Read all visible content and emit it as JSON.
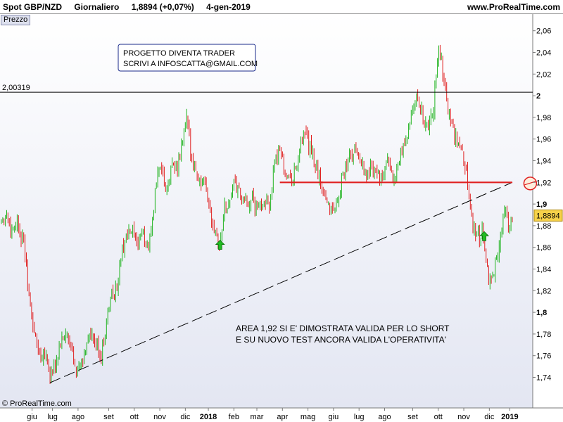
{
  "header": {
    "instrument": "Spot GBP/NZD",
    "timeframe": "Giornaliero",
    "quote": "1,8894 (+0,07%)",
    "date": "4-gen-2019",
    "site": "www.ProRealTime.com"
  },
  "panel_label": "Prezzo",
  "copyright": "© ProRealTime.com",
  "chart_data": {
    "type": "candlestick",
    "instrument": "GBP/NZD",
    "ylim": [
      1.715,
      2.065
    ],
    "y_ticks": [
      {
        "value": 1.74,
        "label": "1,74"
      },
      {
        "value": 1.76,
        "label": "1,76"
      },
      {
        "value": 1.78,
        "label": "1,78"
      },
      {
        "value": 1.8,
        "label": "1,8",
        "bold": true
      },
      {
        "value": 1.82,
        "label": "1,82"
      },
      {
        "value": 1.84,
        "label": "1,84"
      },
      {
        "value": 1.86,
        "label": "1,86"
      },
      {
        "value": 1.88,
        "label": "1,88"
      },
      {
        "value": 1.9,
        "label": "1,9",
        "bold": true
      },
      {
        "value": 1.92,
        "label": "1,92"
      },
      {
        "value": 1.94,
        "label": "1,94"
      },
      {
        "value": 1.96,
        "label": "1,96"
      },
      {
        "value": 1.98,
        "label": "1,98"
      },
      {
        "value": 2.0,
        "label": "2",
        "bold": true
      },
      {
        "value": 2.02,
        "label": "2,02"
      },
      {
        "value": 2.04,
        "label": "2,04"
      },
      {
        "value": 2.06,
        "label": "2,06"
      }
    ],
    "x_ticks": [
      {
        "t": 0.06,
        "label": "giu"
      },
      {
        "t": 0.1,
        "label": "lug"
      },
      {
        "t": 0.15,
        "label": "ago"
      },
      {
        "t": 0.21,
        "label": "set"
      },
      {
        "t": 0.26,
        "label": "ott"
      },
      {
        "t": 0.31,
        "label": "nov"
      },
      {
        "t": 0.36,
        "label": "dic"
      },
      {
        "t": 0.405,
        "label": "2018",
        "bold": true
      },
      {
        "t": 0.455,
        "label": "feb"
      },
      {
        "t": 0.5,
        "label": "mar"
      },
      {
        "t": 0.55,
        "label": "apr"
      },
      {
        "t": 0.6,
        "label": "mag"
      },
      {
        "t": 0.65,
        "label": "giu"
      },
      {
        "t": 0.7,
        "label": "lug"
      },
      {
        "t": 0.75,
        "label": "ago"
      },
      {
        "t": 0.805,
        "label": "set"
      },
      {
        "t": 0.855,
        "label": "ott"
      },
      {
        "t": 0.905,
        "label": "nov"
      },
      {
        "t": 0.955,
        "label": "dic"
      },
      {
        "t": 0.995,
        "label": "2019",
        "bold": true
      }
    ],
    "price_path": [
      [
        0.0,
        1.885
      ],
      [
        0.01,
        1.89
      ],
      [
        0.02,
        1.875
      ],
      [
        0.03,
        1.885
      ],
      [
        0.045,
        1.86
      ],
      [
        0.055,
        1.81
      ],
      [
        0.065,
        1.78
      ],
      [
        0.075,
        1.76
      ],
      [
        0.085,
        1.765
      ],
      [
        0.095,
        1.742
      ],
      [
        0.105,
        1.75
      ],
      [
        0.115,
        1.77
      ],
      [
        0.125,
        1.78
      ],
      [
        0.14,
        1.762
      ],
      [
        0.15,
        1.745
      ],
      [
        0.16,
        1.755
      ],
      [
        0.17,
        1.78
      ],
      [
        0.185,
        1.77
      ],
      [
        0.195,
        1.76
      ],
      [
        0.205,
        1.79
      ],
      [
        0.215,
        1.815
      ],
      [
        0.225,
        1.82
      ],
      [
        0.235,
        1.855
      ],
      [
        0.245,
        1.87
      ],
      [
        0.255,
        1.875
      ],
      [
        0.265,
        1.862
      ],
      [
        0.275,
        1.875
      ],
      [
        0.285,
        1.86
      ],
      [
        0.295,
        1.88
      ],
      [
        0.305,
        1.93
      ],
      [
        0.315,
        1.925
      ],
      [
        0.325,
        1.91
      ],
      [
        0.335,
        1.94
      ],
      [
        0.345,
        1.93
      ],
      [
        0.355,
        1.96
      ],
      [
        0.362,
        1.98
      ],
      [
        0.37,
        1.95
      ],
      [
        0.38,
        1.93
      ],
      [
        0.39,
        1.92
      ],
      [
        0.4,
        1.915
      ],
      [
        0.41,
        1.89
      ],
      [
        0.42,
        1.875
      ],
      [
        0.428,
        1.86
      ],
      [
        0.435,
        1.895
      ],
      [
        0.445,
        1.9
      ],
      [
        0.455,
        1.92
      ],
      [
        0.465,
        1.91
      ],
      [
        0.475,
        1.9
      ],
      [
        0.49,
        1.905
      ],
      [
        0.5,
        1.895
      ],
      [
        0.515,
        1.905
      ],
      [
        0.525,
        1.9
      ],
      [
        0.535,
        1.935
      ],
      [
        0.545,
        1.955
      ],
      [
        0.555,
        1.93
      ],
      [
        0.565,
        1.92
      ],
      [
        0.575,
        1.93
      ],
      [
        0.585,
        1.95
      ],
      [
        0.595,
        1.965
      ],
      [
        0.605,
        1.95
      ],
      [
        0.615,
        1.935
      ],
      [
        0.625,
        1.92
      ],
      [
        0.635,
        1.905
      ],
      [
        0.645,
        1.895
      ],
      [
        0.655,
        1.9
      ],
      [
        0.665,
        1.92
      ],
      [
        0.675,
        1.935
      ],
      [
        0.685,
        1.945
      ],
      [
        0.695,
        1.95
      ],
      [
        0.705,
        1.94
      ],
      [
        0.715,
        1.925
      ],
      [
        0.725,
        1.935
      ],
      [
        0.735,
        1.93
      ],
      [
        0.745,
        1.92
      ],
      [
        0.755,
        1.94
      ],
      [
        0.765,
        1.925
      ],
      [
        0.775,
        1.93
      ],
      [
        0.785,
        1.95
      ],
      [
        0.795,
        1.965
      ],
      [
        0.805,
        1.985
      ],
      [
        0.815,
        2.0
      ],
      [
        0.825,
        1.98
      ],
      [
        0.835,
        1.97
      ],
      [
        0.845,
        1.985
      ],
      [
        0.852,
        2.03
      ],
      [
        0.858,
        2.04
      ],
      [
        0.865,
        2.02
      ],
      [
        0.872,
        1.995
      ],
      [
        0.88,
        1.975
      ],
      [
        0.89,
        1.96
      ],
      [
        0.9,
        1.95
      ],
      [
        0.91,
        1.93
      ],
      [
        0.918,
        1.9
      ],
      [
        0.925,
        1.875
      ],
      [
        0.935,
        1.87
      ],
      [
        0.942,
        1.878
      ],
      [
        0.95,
        1.84
      ],
      [
        0.955,
        1.825
      ],
      [
        0.962,
        1.835
      ],
      [
        0.97,
        1.855
      ],
      [
        0.978,
        1.87
      ],
      [
        0.985,
        1.895
      ],
      [
        0.992,
        1.88
      ],
      [
        1.0,
        1.89
      ]
    ],
    "last_price": {
      "value": 1.8894,
      "label": "1,8894"
    },
    "resistance_line": {
      "value": 2.00319,
      "label": "2,00319"
    },
    "support_zone_line": {
      "value": 1.92,
      "t_start": 0.545,
      "t_end": 1.0,
      "color": "#e02020"
    },
    "trendline": {
      "t1": 0.095,
      "v1": 1.735,
      "t2": 1.0,
      "v2": 1.92,
      "style": "dashed"
    },
    "arrows": [
      {
        "t": 0.428,
        "value": 1.862,
        "direction": "up",
        "color": "#22bb22"
      },
      {
        "t": 0.945,
        "value": 1.87,
        "direction": "up",
        "color": "#22bb22"
      }
    ],
    "circle_marker": {
      "t": 1.035,
      "value": 1.919,
      "color": "#e02020"
    },
    "annotations": {
      "box_line1": "PROGETTO DIVENTA TRADER",
      "box_line2": "SCRIVI A INFOSCATTA@GMAIL.COM",
      "note_line1": "AREA 1,92 SI E' DIMOSTRATA VALIDA PER LO SHORT",
      "note_line2": "E SU NUOVO TEST ANCORA VALIDA L'OPERATIVITA'"
    },
    "colors": {
      "up": "#1fb31f",
      "down": "#e02020",
      "background_top": "#ffffff",
      "background_bottom": "#e3e6f2"
    }
  }
}
